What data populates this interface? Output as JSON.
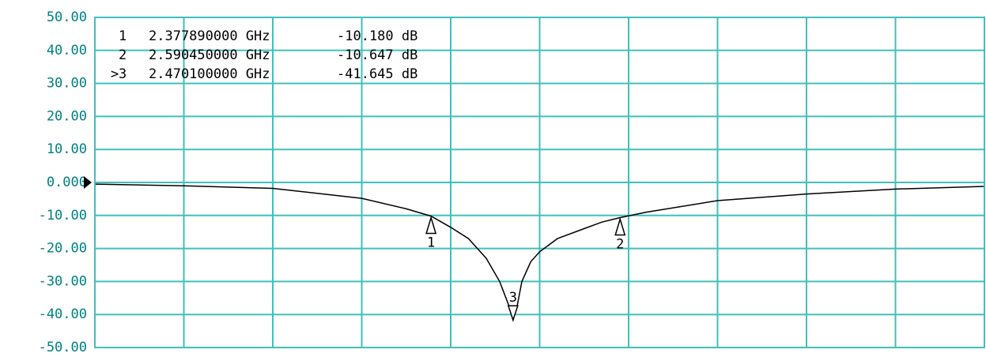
{
  "chart_data": {
    "type": "line",
    "xlim": [
      2.0,
      3.0
    ],
    "xticks": [
      2.0,
      2.1,
      2.2,
      2.3,
      2.4,
      2.5,
      2.6,
      2.7,
      2.8,
      2.9,
      3.0
    ],
    "ylim": [
      -50,
      50
    ],
    "yticks": [
      {
        "value": 50,
        "label": "50.00"
      },
      {
        "value": 40,
        "label": "40.00"
      },
      {
        "value": 30,
        "label": "30.00"
      },
      {
        "value": 20,
        "label": "20.00"
      },
      {
        "value": 10,
        "label": "10.00"
      },
      {
        "value": 0,
        "label": "0.000"
      },
      {
        "value": -10,
        "label": "-10.00"
      },
      {
        "value": -20,
        "label": "-20.00"
      },
      {
        "value": -30,
        "label": "-30.00"
      },
      {
        "value": -40,
        "label": "-40.00"
      },
      {
        "value": -50,
        "label": "-50.00"
      }
    ],
    "grid": true,
    "grid_color": "#40bfbf",
    "reference_level": 0,
    "series": [
      {
        "color": "#000000",
        "x": [
          2.0,
          2.1,
          2.2,
          2.3,
          2.35,
          2.37789,
          2.4,
          2.42,
          2.44,
          2.455,
          2.465,
          2.4701,
          2.475,
          2.48,
          2.49,
          2.5,
          2.52,
          2.55,
          2.57,
          2.59045,
          2.62,
          2.7,
          2.8,
          2.9,
          3.0
        ],
        "values": [
          -0.5,
          -1,
          -1.8,
          -4.8,
          -8,
          -10.18,
          -13.6,
          -17,
          -23,
          -30,
          -37,
          -41.645,
          -37,
          -30,
          -24,
          -21,
          -17,
          -14,
          -12,
          -10.647,
          -9,
          -5.5,
          -3.5,
          -2,
          -1.2
        ]
      }
    ],
    "active_prefix": ">",
    "active_marker": 2,
    "markers": [
      {
        "name": "1",
        "x": 2.37789,
        "x_label": "2.377890000 GHz",
        "value": -10.18,
        "value_label": "-10.180 dB"
      },
      {
        "name": "2",
        "x": 2.59045,
        "x_label": "2.590450000 GHz",
        "value": -10.647,
        "value_label": "-10.647 dB"
      },
      {
        "name": "3",
        "x": 2.4701,
        "x_label": "2.470100000 GHz",
        "value": -41.645,
        "value_label": "-41.645 dB"
      }
    ]
  }
}
